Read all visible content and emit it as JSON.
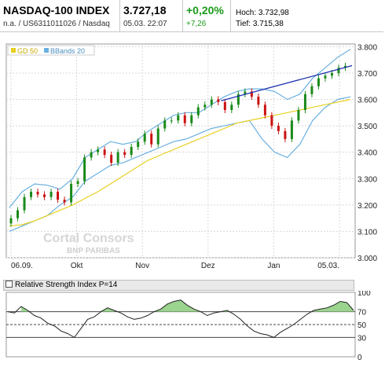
{
  "header": {
    "title": "NASDAQ-100 INDEX",
    "subtitle": "n.a. / US6311011026 / Nasdaq",
    "price": "3.727,18",
    "date_time": "05.03. 22:07",
    "change_pct": "+0,20%",
    "change_abs": "+7,26",
    "high_label": "Hoch:",
    "high_value": "3.732,98",
    "low_label": "Tief:",
    "low_value": "3.715,38"
  },
  "colors": {
    "up_candle": "#1a8a1a",
    "down_candle": "#cc1111",
    "gd50": "#e8d020",
    "bbands": "#6ab0e0",
    "trendline": "#1a2fb0",
    "rsi_fill": "#9bd48f",
    "rsi_line": "#222222"
  },
  "legend": {
    "gd50": "GD 50",
    "bbands": "BBands 20"
  },
  "watermark": {
    "line1": "Cortal Consors",
    "line2": "BNP PARIBAS"
  },
  "chart_data": [
    {
      "type": "candlestick",
      "title": "NASDAQ-100 INDEX",
      "x_tick_labels": [
        "06.09.",
        "Okt",
        "Nov",
        "Dez",
        "Jan",
        "05.03."
      ],
      "y_tick_labels": [
        "3.000",
        "3.100",
        "3.200",
        "3.300",
        "3.400",
        "3.500",
        "3.600",
        "3.700",
        "3.800"
      ],
      "ylim": [
        3000,
        3810
      ],
      "grid": true,
      "legend_position": "top-left",
      "series": [
        {
          "name": "GD 50",
          "kind": "line",
          "values": [
            3120,
            3125,
            3140,
            3160,
            3180,
            3200,
            3225,
            3250,
            3280,
            3310,
            3340,
            3370,
            3390,
            3410,
            3430,
            3450,
            3470,
            3490,
            3510,
            3520,
            3530,
            3540,
            3550,
            3560,
            3570,
            3580,
            3590,
            3600
          ]
        },
        {
          "name": "BBands 20 (upper)",
          "kind": "line",
          "values": [
            3190,
            3250,
            3280,
            3275,
            3260,
            3300,
            3380,
            3410,
            3440,
            3430,
            3440,
            3480,
            3510,
            3540,
            3550,
            3550,
            3580,
            3610,
            3630,
            3640,
            3640,
            3630,
            3600,
            3620,
            3680,
            3720,
            3760,
            3790
          ]
        },
        {
          "name": "BBands 20 (lower)",
          "kind": "line",
          "values": [
            3100,
            3120,
            3140,
            3160,
            3200,
            3230,
            3290,
            3320,
            3350,
            3360,
            3380,
            3400,
            3420,
            3440,
            3450,
            3470,
            3490,
            3500,
            3510,
            3520,
            3450,
            3400,
            3380,
            3430,
            3520,
            3570,
            3600,
            3610
          ]
        },
        {
          "name": "Close",
          "kind": "candles",
          "values": [
            3150,
            3180,
            3230,
            3250,
            3240,
            3230,
            3250,
            3220,
            3210,
            3280,
            3290,
            3380,
            3400,
            3410,
            3390,
            3360,
            3400,
            3390,
            3420,
            3440,
            3470,
            3430,
            3490,
            3520,
            3520,
            3540,
            3510,
            3540,
            3570,
            3580,
            3600,
            3590,
            3560,
            3580,
            3620,
            3630,
            3610,
            3580,
            3540,
            3500,
            3480,
            3450,
            3520,
            3560,
            3620,
            3650,
            3680,
            3690,
            3700,
            3720,
            3727
          ]
        }
      ],
      "annotations": [
        "Trendlinie"
      ]
    },
    {
      "type": "line",
      "title": "Relative Strength Index P=14",
      "y_tick_labels": [
        "0",
        "30",
        "50",
        "70",
        "100"
      ],
      "reference_lines": [
        30,
        50,
        70
      ],
      "ylim": [
        0,
        100
      ],
      "values": [
        70,
        68,
        78,
        72,
        64,
        60,
        52,
        48,
        40,
        36,
        30,
        44,
        58,
        62,
        70,
        76,
        72,
        68,
        62,
        58,
        60,
        64,
        70,
        74,
        82,
        86,
        88,
        80,
        74,
        70,
        64,
        68,
        70,
        72,
        66,
        58,
        48,
        40,
        36,
        34,
        30,
        38,
        44,
        50,
        58,
        66,
        72,
        74,
        76,
        80,
        86,
        84,
        72
      ]
    }
  ]
}
